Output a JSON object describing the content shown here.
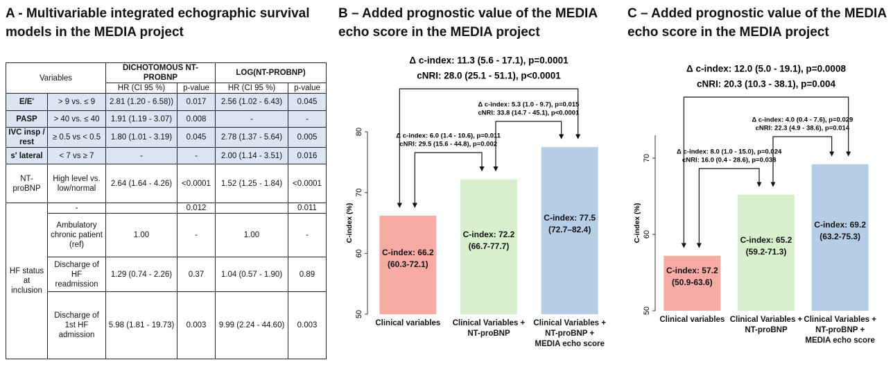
{
  "panel_a": {
    "title": "A - Multivariable integrated echographic survival models in the MEDIA project",
    "table": {
      "header": {
        "variables": "Variables",
        "groups": [
          "DICHOTOMOUS NT-PROBNP",
          "LOG(NT-PROBNP)"
        ],
        "columns": [
          "HR (CI 95 %)",
          "p-value",
          "HR (CI 95 %)",
          "p-value"
        ]
      },
      "rows": [
        {
          "variable": "E/E'",
          "level": "> 9 vs. ≤ 9",
          "cells": [
            "2.81 (1.20 - 6.58))",
            "0.017",
            "2.56 (1.02 - 6.43)",
            "0.045"
          ],
          "highlight": true
        },
        {
          "variable": "PASP",
          "level": "> 40 vs. ≤ 40",
          "cells": [
            "1.91 (1.19 - 3.07)",
            "0.008",
            "-",
            "-"
          ],
          "highlight": true
        },
        {
          "variable": "IVC insp / rest",
          "level": "≥ 0.5 vs < 0.5",
          "cells": [
            "1.80 (1.01 - 3.19)",
            "0.045",
            "2.78 (1.37 - 5.64)",
            "0.005"
          ],
          "highlight": true
        },
        {
          "variable": "s' lateral",
          "level": "< 7 vs ≥ 7",
          "cells": [
            "-",
            "-",
            "2.00 (1.14 - 3.51)",
            "0.016"
          ],
          "highlight": true
        },
        {
          "variable": "NT-proBNP",
          "level": "High level vs. low/normal",
          "cells": [
            "2.64 (1.64 - 4.26)",
            "<0.0001",
            "1.52 (1.25 - 1.84)",
            "<0.0001"
          ],
          "highlight": false
        }
      ],
      "hf_status": {
        "variable": "HF status at inclusion",
        "rows": [
          {
            "level": "-",
            "cells": [
              null,
              "0.012",
              null,
              "0.011"
            ]
          },
          {
            "level": "Ambulatory chronic patient (ref)",
            "cells": [
              "1.00",
              "-",
              "1.00",
              "-"
            ]
          },
          {
            "level": "Discharge of HF readmission",
            "cells": [
              "1.29 (0.74 - 2.26)",
              "0.37",
              "1.04 (0.57 - 1.90)",
              "0.89"
            ]
          },
          {
            "level": "Discharge of 1st HF admission",
            "cells": [
              "5.98 (1.81 - 19.73)",
              "0.003",
              "9.99 (2.24 - 44.60)",
              "0.003"
            ]
          }
        ]
      }
    }
  },
  "chart_data": [
    {
      "type": "bar",
      "title": "B – Added prognostic value of the MEDIA echo score in the MEDIA project",
      "ylabel": "C-index (%)",
      "categories": [
        "Clinical variables",
        "Clinical Variables + NT-proBNP",
        "Clinical Variables + NT-proBNP + MEDIA echo score"
      ],
      "values": [
        66.2,
        72.2,
        77.5
      ],
      "value_labels": [
        "C-index: 66.2 (60.3-72.1)",
        "C-index: 72.2 (66.7-77.7)",
        "C-index: 77.5 (72.7–82.4)"
      ],
      "colors": [
        "#f8aaa4",
        "#d8efcd",
        "#b6cde6"
      ],
      "ylim": [
        50,
        80
      ],
      "yticks": [
        50,
        60,
        70,
        80
      ],
      "comparisons": [
        {
          "delta": "Δ c-index: 11.3 (5.6 - 17.1), p=0.0001",
          "cnri": "cNRI: 28.0 (25.1 - 51.1), p<0.0001"
        },
        {
          "delta": "Δ c-index: 5.3 (1.0 - 9.7), p=0.015",
          "cnri": "cNRI: 33.8 (14.7 - 45.1), p<0.0001"
        },
        {
          "delta": "Δ c-index: 6.0 (1.4 - 10.6), p=0.011",
          "cnri": "cNRI: 29.5 (15.6 - 44.8), p=0.002"
        }
      ]
    },
    {
      "type": "bar",
      "title": "C – Added prognostic value of the MEDIA echo score in the MEDIA project",
      "ylabel": "C-index (%)",
      "categories": [
        "Clinical variables",
        "Clinical Variables + NT-proBNP",
        "Clinical Variables + NT-proBNP + MEDIA echo score"
      ],
      "values": [
        57.2,
        65.2,
        69.2
      ],
      "value_labels": [
        "C-index: 57.2 (50.9-63.6)",
        "C-index: 65.2 (59.2-71.3)",
        "C-index: 69.2 (63.2-75.3)"
      ],
      "colors": [
        "#f8aaa4",
        "#d8efcd",
        "#b6cde6"
      ],
      "ylim": [
        50,
        73
      ],
      "yticks": [
        50,
        60,
        70
      ],
      "comparisons": [
        {
          "delta": "Δ c-index: 12.0 (5.0 - 19.1), p=0.0008",
          "cnri": "cNRI: 20.3 (10.3 - 38.1), p=0.004"
        },
        {
          "delta": "Δ c-index: 4.0 (0.4 - 7.6), p=0.029",
          "cnri": "cNRI: 22.3 (4.9 - 38.6), p=0.014"
        },
        {
          "delta": "Δ c-index: 8.0 (1.0 - 15.0), p=0.024",
          "cnri": "cNRI: 16.0 (0.4 - 28.6), p=0.038"
        }
      ]
    }
  ]
}
